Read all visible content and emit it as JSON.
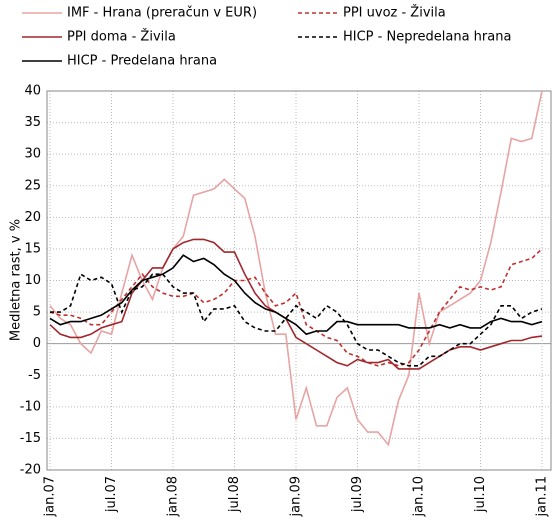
{
  "chart_data": {
    "type": "line",
    "y_label": "Medletna rast, v %",
    "categories": [
      "jan.07",
      null,
      null,
      null,
      null,
      null,
      "jul.07",
      null,
      null,
      null,
      null,
      null,
      "jan.08",
      null,
      null,
      null,
      null,
      null,
      "jul.08",
      null,
      null,
      null,
      null,
      null,
      "jan.09",
      null,
      null,
      null,
      null,
      null,
      "jul.09",
      null,
      null,
      null,
      null,
      null,
      "jan.10",
      null,
      null,
      null,
      null,
      null,
      "jul.10",
      null,
      null,
      null,
      null,
      null,
      "jan.11"
    ],
    "ylim": [
      -20,
      40
    ],
    "yticks": [
      -20,
      -15,
      -10,
      -5,
      0,
      5,
      10,
      15,
      20,
      25,
      30,
      35,
      40
    ],
    "grid": true,
    "series": [
      {
        "name": "IMF - Hrana (preračun v EUR)",
        "color": "#e8a3a3",
        "style": "solid",
        "values": [
          6,
          4,
          3,
          0,
          -1.5,
          2,
          1.5,
          8,
          14,
          10,
          7,
          12,
          15,
          17,
          23.5,
          24,
          24.5,
          26,
          24.5,
          23,
          17,
          8,
          1.5,
          1.5,
          -12,
          -7,
          -13,
          -13,
          -8.5,
          -7,
          -12,
          -14,
          -14,
          -16,
          -9,
          -5,
          8,
          0,
          5,
          6,
          7,
          8,
          10,
          16,
          24,
          32.5,
          32,
          32.5,
          40
        ]
      },
      {
        "name": "PPI uvoz - Živila",
        "color": "#c0302f",
        "style": "dashed",
        "values": [
          5,
          4.5,
          4.5,
          4,
          3,
          3,
          5,
          7,
          9,
          11,
          9,
          8,
          7.5,
          7.5,
          8,
          6.5,
          7,
          8,
          10,
          10,
          10.5,
          8,
          6,
          6.5,
          8,
          3,
          2,
          1,
          0.5,
          -1.5,
          -2,
          -3,
          -3.5,
          -3,
          -3.5,
          -3,
          -1,
          2,
          5,
          7,
          9,
          8.5,
          9,
          8.5,
          9,
          12.5,
          13,
          13.5,
          15
        ]
      },
      {
        "name": "PPI doma - Živila",
        "color": "#a0282d",
        "style": "solid",
        "values": [
          3,
          1.5,
          1,
          1,
          1.5,
          2.5,
          3,
          3.5,
          8,
          10,
          12,
          12,
          15,
          16,
          16.5,
          16.5,
          16,
          14.5,
          14.5,
          11,
          8,
          6,
          5,
          4,
          1,
          0,
          -1,
          -2,
          -3,
          -3.5,
          -2.5,
          -3,
          -3,
          -2.5,
          -4,
          -4,
          -4,
          -3,
          -2,
          -1,
          -0.5,
          -0.5,
          -1,
          -0.5,
          0,
          0.5,
          0.5,
          1,
          1.2
        ]
      },
      {
        "name": "HICP - Nepredelana hrana",
        "color": "#000000",
        "style": "dashed",
        "values": [
          5,
          5,
          6,
          11,
          10,
          10.5,
          9.5,
          5,
          8.5,
          9,
          11,
          11,
          9,
          8,
          8,
          3.5,
          5.5,
          5.5,
          6,
          3.5,
          2.5,
          2,
          2,
          4,
          6,
          5,
          4,
          6,
          5,
          3,
          0,
          -1,
          -1,
          -2,
          -3,
          -3.5,
          -3.5,
          -2,
          -2,
          -1,
          0,
          0,
          1.5,
          3,
          6,
          6,
          4,
          5,
          5.5
        ]
      },
      {
        "name": "HICP - Predelana hrana",
        "color": "#000000",
        "style": "solid",
        "values": [
          4,
          3,
          3.5,
          3.5,
          4,
          4.5,
          5.5,
          6.5,
          8.5,
          10,
          10.5,
          11,
          12,
          14,
          13,
          13.5,
          12.5,
          11,
          10,
          8,
          6.5,
          5.5,
          5,
          4,
          3,
          1.5,
          2,
          2,
          3.5,
          3.5,
          3,
          3,
          3,
          3,
          3,
          2.5,
          2.5,
          2.5,
          3,
          2.5,
          3,
          2.5,
          2.5,
          3.5,
          4,
          3.5,
          3.5,
          3,
          3.5
        ]
      }
    ]
  }
}
